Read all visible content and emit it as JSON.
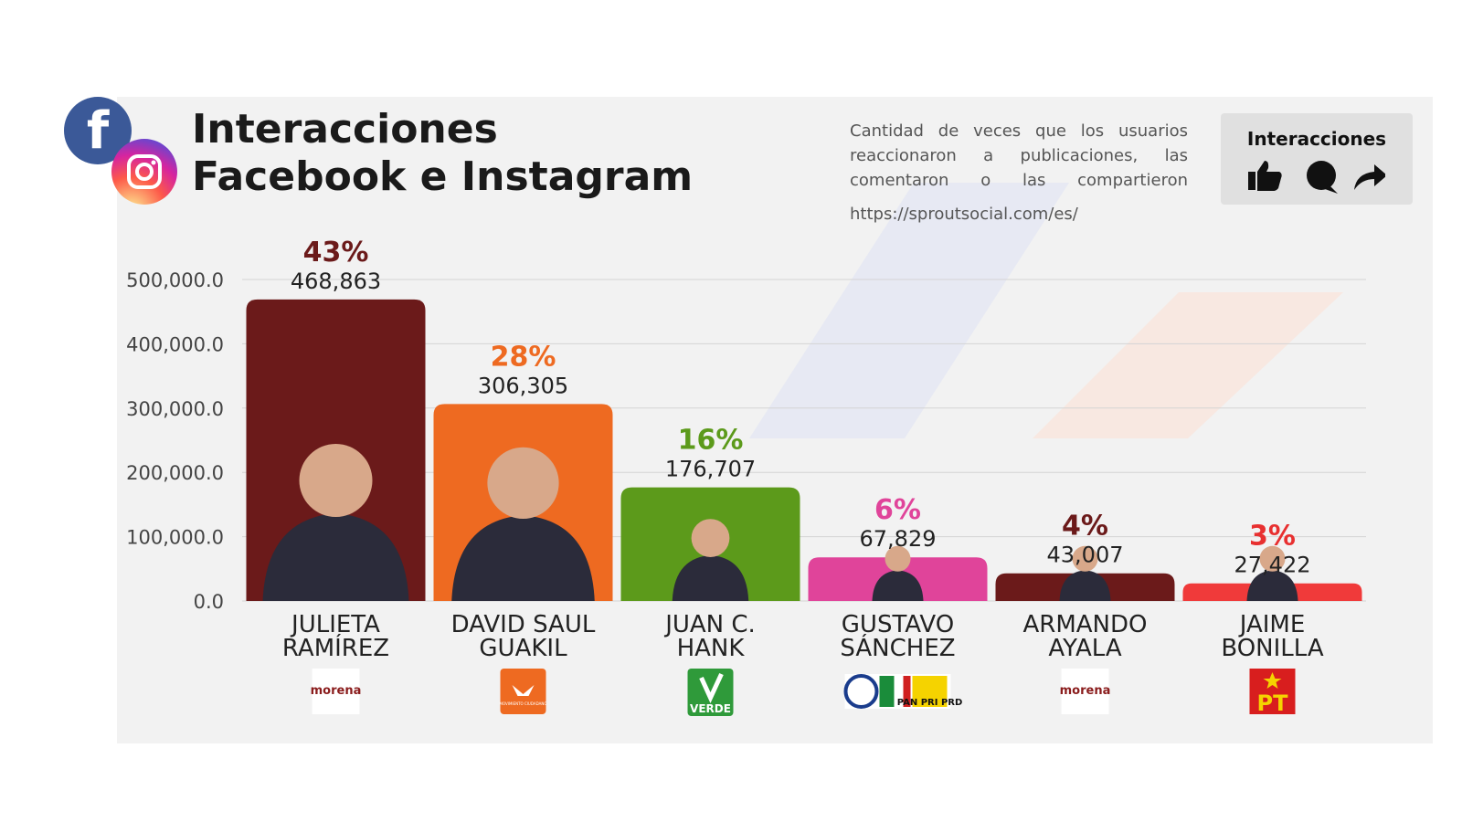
{
  "header": {
    "title_line1": "Interacciones",
    "title_line2": "Facebook e Instagram",
    "description": "Cantidad de veces que los usuarios reaccionaron a publicaciones, las comentaron o las compartieron",
    "source": "https://sproutsocial.com/es/",
    "legend_label": "Interacciones"
  },
  "icons": {
    "facebook": "facebook-icon",
    "instagram": "instagram-icon",
    "like": "thumbs-up-icon",
    "comment": "comment-icon",
    "share": "share-icon"
  },
  "chart_data": {
    "type": "bar",
    "ylim": [
      0,
      500000
    ],
    "yticks": [
      "0.0",
      "100,000.0",
      "200,000.0",
      "300,000.0",
      "400,000.0",
      "500,000.0"
    ],
    "grid": true,
    "categories": [
      {
        "line1": "JULIETA",
        "line2": "RAMÍREZ"
      },
      {
        "line1": "DAVID SAUL",
        "line2": "GUAKIL"
      },
      {
        "line1": "JUAN C.",
        "line2": "HANK"
      },
      {
        "line1": "GUSTAVO",
        "line2": "SÁNCHEZ"
      },
      {
        "line1": "ARMANDO",
        "line2": "AYALA"
      },
      {
        "line1": "JAIME",
        "line2": "BONILLA"
      }
    ],
    "values": [
      468863,
      306305,
      176707,
      67829,
      43007,
      27422
    ],
    "value_labels": [
      "468,863",
      "306,305",
      "176,707",
      "67,829",
      "43,007",
      "27,422"
    ],
    "percent_labels": [
      "43%",
      "28%",
      "16%",
      "6%",
      "4%",
      "3%"
    ],
    "colors": [
      "#6b1a1a",
      "#ee6a21",
      "#5c9a1b",
      "#e0449a",
      "#6b1a1a",
      "#f03a3a"
    ],
    "percent_colors": [
      "#6b1a1a",
      "#ee6a21",
      "#5c9a1b",
      "#e0449a",
      "#6b1a1a",
      "#e83030"
    ],
    "party_logos": [
      {
        "icon": "morena-logo",
        "text": "morena"
      },
      {
        "icon": "movimiento-ciudadano-logo",
        "text": "MOVIMIENTO CIUDADANO"
      },
      {
        "icon": "verde-logo",
        "text": "VERDE"
      },
      {
        "icon": "pan-pri-prd-logo",
        "text": "PAN PRI PRD"
      },
      {
        "icon": "morena-logo",
        "text": "morena"
      },
      {
        "icon": "pt-logo",
        "text": "PT"
      }
    ]
  }
}
